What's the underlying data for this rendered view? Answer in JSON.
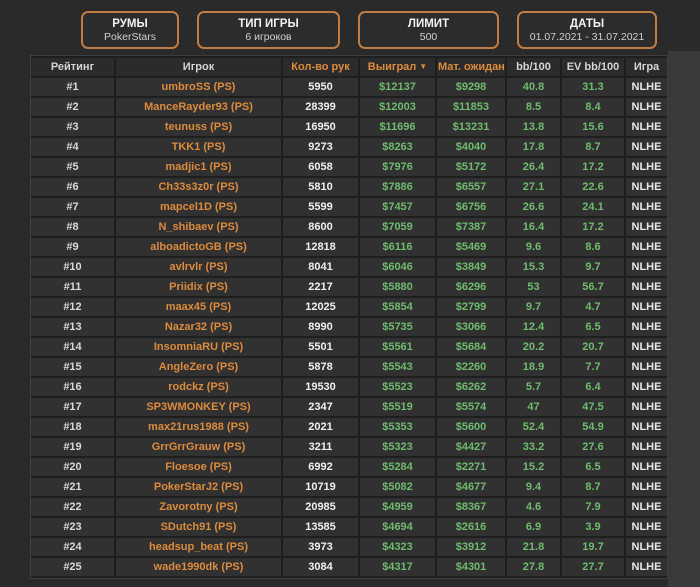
{
  "filters": [
    {
      "title": "РУМЫ",
      "value": "PokerStars"
    },
    {
      "title": "ТИП ИГРЫ",
      "value": "6 игроков"
    },
    {
      "title": "ЛИМИТ",
      "value": "500"
    },
    {
      "title": "ДАТЫ",
      "value": "01.07.2021 - 31.07.2021"
    }
  ],
  "table": {
    "sort_icon": "▼",
    "columns": [
      {
        "key": "rating",
        "label": "Рейтинг",
        "accent": false,
        "sorted": false
      },
      {
        "key": "player",
        "label": "Игрок",
        "accent": false,
        "sorted": false
      },
      {
        "key": "hands",
        "label": "Кол-во рук",
        "accent": true,
        "sorted": false
      },
      {
        "key": "won",
        "label": "Выиграл",
        "accent": true,
        "sorted": true
      },
      {
        "key": "expectation",
        "label": "Мат. ожидание",
        "accent": true,
        "sorted": false
      },
      {
        "key": "bb100",
        "label": "bb/100",
        "accent": false,
        "sorted": false
      },
      {
        "key": "ev-bb100",
        "label": "EV bb/100",
        "accent": false,
        "sorted": false
      },
      {
        "key": "game",
        "label": "Игра",
        "accent": false,
        "sorted": false
      }
    ],
    "rows": [
      [
        "#1",
        "umbroSS (PS)",
        "5950",
        "$12137",
        "$9298",
        "40.8",
        "31.3",
        "NLHE"
      ],
      [
        "#2",
        "ManceRayder93 (PS)",
        "28399",
        "$12003",
        "$11853",
        "8.5",
        "8.4",
        "NLHE"
      ],
      [
        "#3",
        "teunuss (PS)",
        "16950",
        "$11696",
        "$13231",
        "13.8",
        "15.6",
        "NLHE"
      ],
      [
        "#4",
        "TKK1 (PS)",
        "9273",
        "$8263",
        "$4040",
        "17.8",
        "8.7",
        "NLHE"
      ],
      [
        "#5",
        "madjic1 (PS)",
        "6058",
        "$7976",
        "$5172",
        "26.4",
        "17.2",
        "NLHE"
      ],
      [
        "#6",
        "Ch33s3z0r (PS)",
        "5810",
        "$7886",
        "$6557",
        "27.1",
        "22.6",
        "NLHE"
      ],
      [
        "#7",
        "mapcel1D (PS)",
        "5599",
        "$7457",
        "$6756",
        "26.6",
        "24.1",
        "NLHE"
      ],
      [
        "#8",
        "N_shibaev (PS)",
        "8600",
        "$7059",
        "$7387",
        "16.4",
        "17.2",
        "NLHE"
      ],
      [
        "#9",
        "alboadictoGB (PS)",
        "12818",
        "$6116",
        "$5469",
        "9.6",
        "8.6",
        "NLHE"
      ],
      [
        "#10",
        "avlrvlr (PS)",
        "8041",
        "$6046",
        "$3849",
        "15.3",
        "9.7",
        "NLHE"
      ],
      [
        "#11",
        "Priidix (PS)",
        "2217",
        "$5880",
        "$6296",
        "53",
        "56.7",
        "NLHE"
      ],
      [
        "#12",
        "maax45 (PS)",
        "12025",
        "$5854",
        "$2799",
        "9.7",
        "4.7",
        "NLHE"
      ],
      [
        "#13",
        "Nazar32 (PS)",
        "8990",
        "$5735",
        "$3066",
        "12.4",
        "6.5",
        "NLHE"
      ],
      [
        "#14",
        "InsomniaRU (PS)",
        "5501",
        "$5561",
        "$5684",
        "20.2",
        "20.7",
        "NLHE"
      ],
      [
        "#15",
        "AngleZero (PS)",
        "5878",
        "$5543",
        "$2260",
        "18.9",
        "7.7",
        "NLHE"
      ],
      [
        "#16",
        "rodckz (PS)",
        "19530",
        "$5523",
        "$6262",
        "5.7",
        "6.4",
        "NLHE"
      ],
      [
        "#17",
        "SP3WMONKEY (PS)",
        "2347",
        "$5519",
        "$5574",
        "47",
        "47.5",
        "NLHE"
      ],
      [
        "#18",
        "max21rus1988 (PS)",
        "2021",
        "$5353",
        "$5600",
        "52.4",
        "54.9",
        "NLHE"
      ],
      [
        "#19",
        "GrrGrrGrauw (PS)",
        "3211",
        "$5323",
        "$4427",
        "33.2",
        "27.6",
        "NLHE"
      ],
      [
        "#20",
        "Floesoe (PS)",
        "6992",
        "$5284",
        "$2271",
        "15.2",
        "6.5",
        "NLHE"
      ],
      [
        "#21",
        "PokerStarJ2 (PS)",
        "10719",
        "$5082",
        "$4677",
        "9.4",
        "8.7",
        "NLHE"
      ],
      [
        "#22",
        "Zavorotny (PS)",
        "20985",
        "$4959",
        "$8367",
        "4.6",
        "7.9",
        "NLHE"
      ],
      [
        "#23",
        "SDutch91 (PS)",
        "13585",
        "$4694",
        "$2616",
        "6.9",
        "3.9",
        "NLHE"
      ],
      [
        "#24",
        "headsup_beat (PS)",
        "3973",
        "$4323",
        "$3912",
        "21.8",
        "19.7",
        "NLHE"
      ],
      [
        "#25",
        "wade1990dk (PS)",
        "3084",
        "$4317",
        "$4301",
        "27.8",
        "27.7",
        "NLHE"
      ]
    ]
  },
  "colors": {
    "accent_orange": "#dd8b3d",
    "positive_green": "#6fba6f",
    "filter_border": "#c07c42"
  }
}
